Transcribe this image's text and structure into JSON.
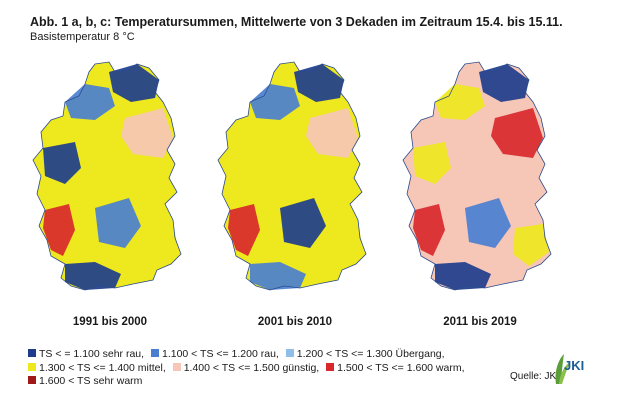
{
  "header": {
    "title": "Abb. 1 a, b, c: Temperatursummen, Mittelwerte von 3 Dekaden im Zeitraum 15.4. bis 15.11.",
    "subtitle": "Basistemperatur 8 °C"
  },
  "maps": [
    {
      "label": "1991 bis 2000",
      "base": "#eee81e",
      "zones": [
        "#4a7fd0",
        "#1d3d8c",
        "#f6c6b7",
        "#1d3d8c",
        "#d8282b",
        "#4a7fd0",
        "#1d3d8c",
        "#eee81e"
      ]
    },
    {
      "label": "2001 bis 2010",
      "base": "#eee81e",
      "zones": [
        "#4a7fd0",
        "#1d3d8c",
        "#f6c6b7",
        "#eee81e",
        "#d8282b",
        "#1d3d8c",
        "#4a7fd0",
        "#eee81e"
      ]
    },
    {
      "label": "2011 bis 2019",
      "base": "#f6c6b7",
      "zones": [
        "#eee81e",
        "#1d3d8c",
        "#d8282b",
        "#eee81e",
        "#d8282b",
        "#4a7fd0",
        "#1d3d8c",
        "#eee81e"
      ]
    }
  ],
  "legend": [
    [
      {
        "color": "#1d3d8c",
        "label": "TS < = 1.100 sehr rau,"
      },
      {
        "color": "#4a7fd0",
        "label": "1.100 < TS <= 1.200 rau,"
      },
      {
        "color": "#8fbfe8",
        "label": "1.200 < TS <= 1.300 Übergang,"
      }
    ],
    [
      {
        "color": "#eee81e",
        "label": "1.300 < TS <= 1.400 mittel,"
      },
      {
        "color": "#f6c6b7",
        "label": "1.400 < TS <= 1.500 günstig,"
      },
      {
        "color": "#d8282b",
        "label": "1.500 < TS <= 1.600 warm,"
      }
    ],
    [
      {
        "color": "#a01818",
        "label": "1.600 < TS sehr warm"
      }
    ]
  ],
  "source": "Quelle: JKI",
  "logo": {
    "text": "JKI",
    "name": "jki-logo"
  }
}
